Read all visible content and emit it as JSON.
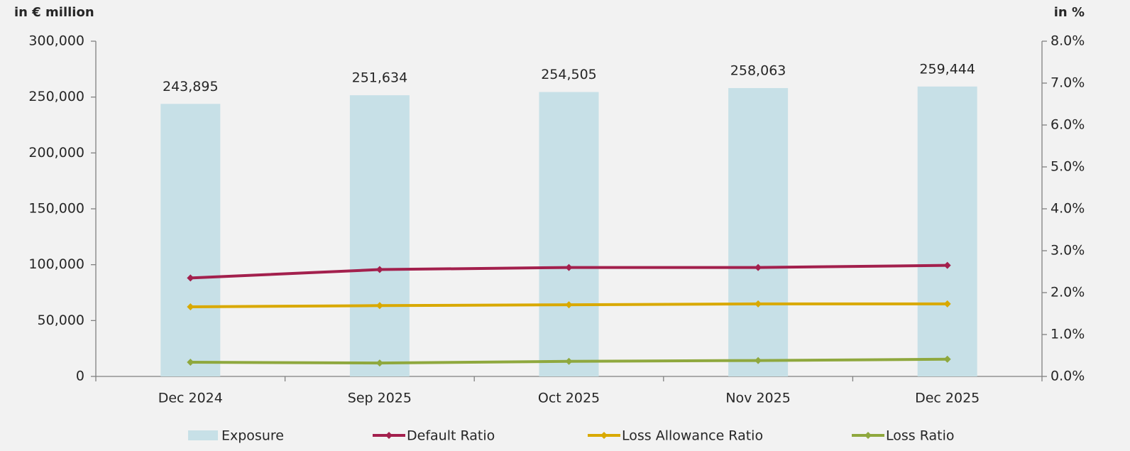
{
  "chart_data": {
    "type": "bar_line",
    "y_unit_label": "in € million",
    "y2_unit_label": "in %",
    "categories": [
      "Dec 2024",
      "Sep 2025",
      "Oct 2025",
      "Nov 2025",
      "Dec 2025"
    ],
    "series": [
      {
        "name": "Exposure",
        "type": "bar",
        "color": "#c7e0e7",
        "values": [
          243895,
          251634,
          254505,
          258063,
          259444
        ],
        "value_labels": [
          "243,895",
          "251,634",
          "254,505",
          "258,063",
          "259,444"
        ]
      },
      {
        "name": "Default Ratio",
        "type": "line",
        "axis": "y2",
        "color": "#a3204d",
        "values": [
          2.35,
          2.55,
          2.6,
          2.6,
          2.65
        ]
      },
      {
        "name": "Loss Allowance Ratio",
        "type": "line",
        "axis": "y2",
        "color": "#d9a900",
        "values": [
          1.66,
          1.69,
          1.71,
          1.73,
          1.73
        ]
      },
      {
        "name": "Loss Ratio",
        "type": "line",
        "axis": "y2",
        "color": "#8fa83e",
        "values": [
          0.34,
          0.32,
          0.36,
          0.38,
          0.41
        ]
      }
    ],
    "ylim": [
      0,
      300000
    ],
    "yticks": [
      0,
      {
        "value": 50000,
        "label": "50,000"
      },
      {
        "value": 100000,
        "label": "100,000"
      },
      {
        "value": 150000,
        "label": "150,000"
      },
      {
        "value": 200000,
        "label": "200,000"
      },
      {
        "value": 250000,
        "label": "250,000"
      },
      {
        "value": 300000,
        "label": "300,000"
      }
    ],
    "y2lim": [
      0,
      8
    ],
    "y2ticks": [
      {
        "value": 0,
        "label": "0.0%"
      },
      {
        "value": 1,
        "label": "1.0%"
      },
      {
        "value": 2,
        "label": "2.0%"
      },
      {
        "value": 3,
        "label": "3.0%"
      },
      {
        "value": 4,
        "label": "4.0%"
      },
      {
        "value": 5,
        "label": "5.0%"
      },
      {
        "value": 6,
        "label": "6.0%"
      },
      {
        "value": 7,
        "label": "7.0%"
      },
      {
        "value": 8,
        "label": "8.0%"
      }
    ],
    "legend": "bottom"
  }
}
